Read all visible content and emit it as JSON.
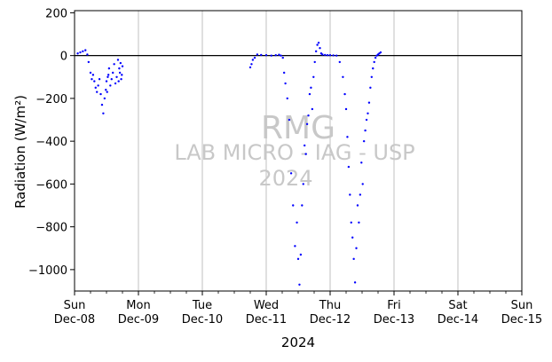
{
  "chart_data": {
    "type": "scatter",
    "title": "",
    "xlabel": "2024",
    "ylabel": "Radiation (W/m²)",
    "ylim": [
      -1100,
      210
    ],
    "xlim": [
      0,
      7
    ],
    "grid": "x-major vertical lines",
    "zero_line": 0,
    "x_tick_labels": [
      {
        "day": "Sun",
        "date": "Dec-08"
      },
      {
        "day": "Mon",
        "date": "Dec-09"
      },
      {
        "day": "Tue",
        "date": "Dec-10"
      },
      {
        "day": "Wed",
        "date": "Dec-11"
      },
      {
        "day": "Thu",
        "date": "Dec-12"
      },
      {
        "day": "Fri",
        "date": "Dec-13"
      },
      {
        "day": "Sat",
        "date": "Dec-14"
      },
      {
        "day": "Sun",
        "date": "Dec-15"
      }
    ],
    "y_ticks": [
      200,
      0,
      -200,
      -400,
      -600,
      -800,
      -1000
    ],
    "y_tick_labels": [
      "200",
      "0",
      "−200",
      "−400",
      "−600",
      "−800",
      "−1000"
    ],
    "series": [
      {
        "color": "#0000ff",
        "x": [
          0.05,
          0.09,
          0.13,
          0.17,
          0.2,
          0.22,
          0.25,
          0.27,
          0.29,
          0.31,
          0.33,
          0.35,
          0.37,
          0.39,
          0.41,
          0.43,
          0.45,
          0.47,
          0.49,
          0.5,
          0.51,
          0.52,
          0.53,
          0.54,
          0.56,
          0.58,
          0.6,
          0.62,
          0.64,
          0.66,
          0.68,
          0.69,
          0.7,
          0.71,
          0.72,
          0.73,
          0.74,
          0.75,
          2.75,
          2.77,
          2.79,
          2.82,
          2.86,
          2.92,
          3.0,
          3.08,
          3.15,
          3.2,
          3.23,
          3.26,
          3.28,
          3.3,
          3.33,
          3.36,
          3.39,
          3.42,
          3.45,
          3.48,
          3.5,
          3.52,
          3.54,
          3.56,
          3.58,
          3.6,
          3.62,
          3.64,
          3.66,
          3.68,
          3.7,
          3.72,
          3.74,
          3.76,
          3.78,
          3.8,
          3.82,
          3.84,
          3.86,
          3.88,
          3.92,
          3.96,
          4.0,
          4.05,
          4.1,
          4.15,
          4.2,
          4.23,
          4.25,
          4.27,
          4.29,
          4.31,
          4.33,
          4.35,
          4.37,
          4.39,
          4.41,
          4.43,
          4.45,
          4.47,
          4.49,
          4.51,
          4.53,
          4.55,
          4.57,
          4.59,
          4.61,
          4.63,
          4.65,
          4.67,
          4.69,
          4.71,
          4.73,
          4.75,
          4.77,
          4.79
        ],
        "y": [
          10,
          15,
          20,
          25,
          5,
          -30,
          -80,
          -110,
          -90,
          -120,
          -150,
          -170,
          -140,
          -110,
          -180,
          -230,
          -270,
          -200,
          -160,
          -120,
          -170,
          -100,
          -90,
          -60,
          -140,
          -110,
          -80,
          -40,
          -130,
          -100,
          -20,
          -120,
          -60,
          -80,
          -35,
          -110,
          -90,
          -50,
          -55,
          -40,
          -20,
          -10,
          5,
          3,
          2,
          0,
          2,
          4,
          0,
          -10,
          -80,
          -130,
          -200,
          -300,
          -550,
          -700,
          -890,
          -780,
          -950,
          -1070,
          -930,
          -700,
          -600,
          -420,
          -460,
          -320,
          -280,
          -180,
          -150,
          -250,
          -100,
          -30,
          20,
          50,
          60,
          35,
          10,
          5,
          3,
          2,
          2,
          1,
          0,
          -30,
          -100,
          -180,
          -250,
          -380,
          -520,
          -650,
          -780,
          -850,
          -950,
          -1060,
          -900,
          -700,
          -780,
          -650,
          -500,
          -600,
          -400,
          -350,
          -300,
          -270,
          -220,
          -150,
          -100,
          -60,
          -30,
          -10,
          0,
          5,
          10,
          15
        ]
      }
    ],
    "watermark": [
      "RMG",
      "LAB MICRO - IAG - USP",
      "2024"
    ]
  }
}
